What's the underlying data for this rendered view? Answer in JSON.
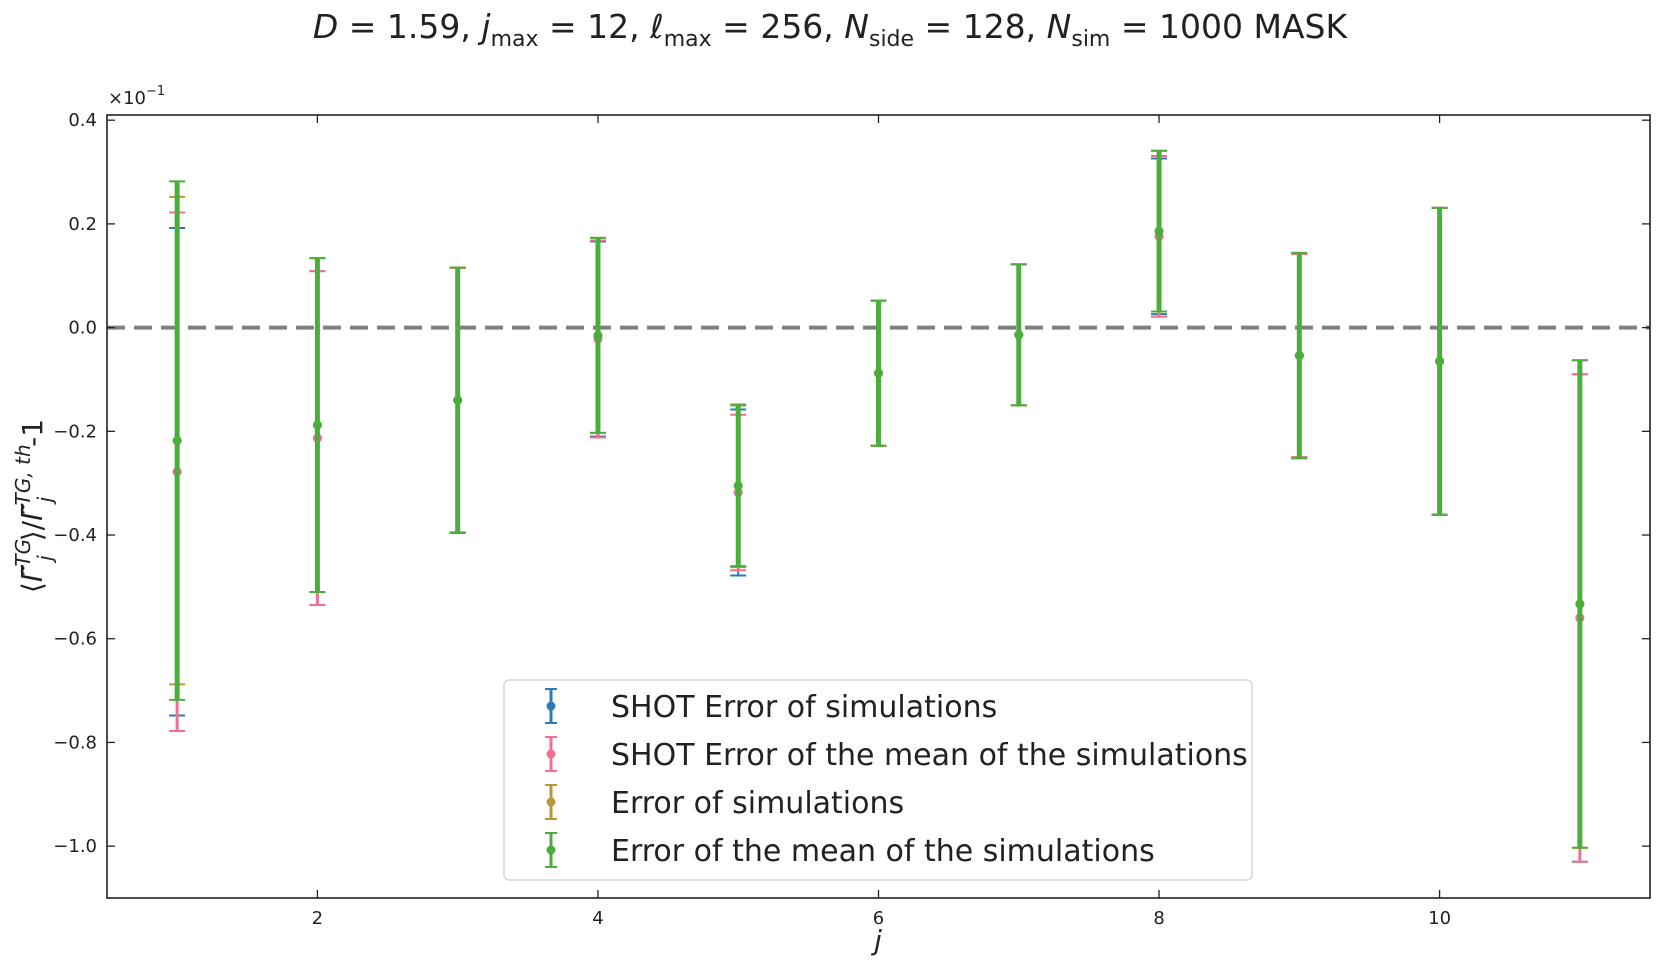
{
  "chart_data": {
    "type": "scatter",
    "title": "D = 1.59,  j_max = 12,  ℓ_max = 256,  N_side = 128, N_sim = 1000 MASK",
    "xlabel": "j",
    "ylabel": "⟨Γ̃_j^TG⟩/Γ̃_j^TG,th -1",
    "scale_label": "×10⁻¹",
    "xlim": [
      0.5,
      11.5
    ],
    "ylim": [
      -1.1,
      0.41
    ],
    "xticks": [
      2,
      4,
      6,
      8,
      10
    ],
    "yticks": [
      -1.0,
      -0.8,
      -0.6,
      -0.4,
      -0.2,
      0.0,
      0.2,
      0.4
    ],
    "xtick_labels": [
      "2",
      "4",
      "6",
      "8",
      "10"
    ],
    "ytick_labels": [
      "−1.0",
      "−0.8",
      "−0.6",
      "−0.4",
      "−0.2",
      "0.0",
      "0.2",
      "0.4"
    ],
    "reference_line": {
      "y": 0.0,
      "style": "dashed",
      "color": "#808080"
    },
    "legend_position": "lower-center",
    "x": [
      1,
      2,
      3,
      4,
      5,
      6,
      7,
      8,
      9,
      10,
      11
    ],
    "series": [
      {
        "name": "SHOT Error of simulations",
        "color": "#2c7bb6",
        "y": [
          -0.278,
          -0.213,
          -0.14,
          -0.022,
          -0.318,
          -0.088,
          -0.014,
          0.176,
          -0.054,
          -0.065,
          -0.56
        ],
        "err": [
          0.47,
          0.322,
          0.255,
          0.188,
          0.16,
          0.14,
          0.136,
          0.15,
          0.196,
          0.296,
          0.47
        ]
      },
      {
        "name": "SHOT Error of the mean of the simulations",
        "color": "#f07090",
        "y": [
          -0.278,
          -0.213,
          -0.14,
          -0.022,
          -0.318,
          -0.088,
          -0.014,
          0.176,
          -0.054,
          -0.065,
          -0.56
        ],
        "err": [
          0.5,
          0.322,
          0.255,
          0.19,
          0.15,
          0.14,
          0.136,
          0.155,
          0.196,
          0.296,
          0.47
        ]
      },
      {
        "name": "Error of simulations",
        "color": "#b8963a",
        "y": [
          -0.218,
          -0.188,
          -0.14,
          -0.015,
          -0.305,
          -0.088,
          -0.014,
          0.186,
          -0.054,
          -0.065,
          -0.533
        ],
        "err": [
          0.47,
          0.322,
          0.256,
          0.188,
          0.157,
          0.14,
          0.136,
          0.155,
          0.198,
          0.296,
          0.47
        ]
      },
      {
        "name": "Error of the mean of the simulations",
        "color": "#4aaf3a",
        "y": [
          -0.218,
          -0.188,
          -0.14,
          -0.015,
          -0.305,
          -0.088,
          -0.014,
          0.186,
          -0.054,
          -0.065,
          -0.533
        ],
        "err": [
          0.5,
          0.322,
          0.256,
          0.188,
          0.155,
          0.14,
          0.136,
          0.155,
          0.198,
          0.296,
          0.47
        ]
      }
    ]
  }
}
